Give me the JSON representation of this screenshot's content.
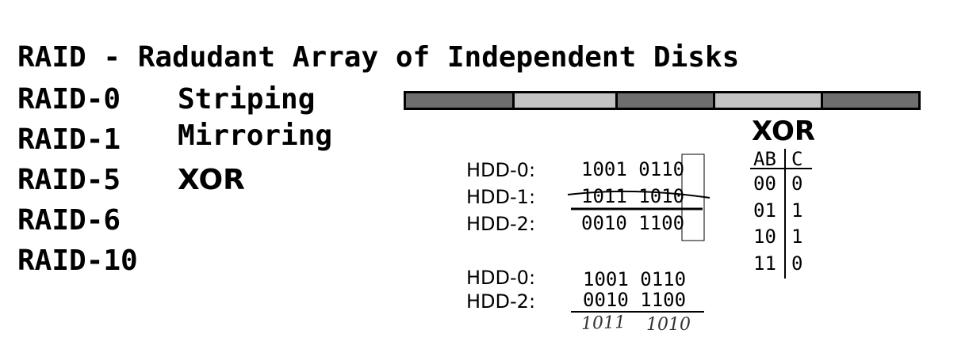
{
  "title": "RAID - Radudant Array of Independent Disks",
  "raid_levels": [
    {
      "label": "RAID-0",
      "desc": "Striping"
    },
    {
      "label": "RAID-1",
      "desc": "Mirroring"
    },
    {
      "label": "RAID-5",
      "desc": "XOR"
    },
    {
      "label": "RAID-6",
      "desc": ""
    },
    {
      "label": "RAID-10",
      "desc": ""
    }
  ],
  "stripe_segments": [
    "dark",
    "light",
    "dark",
    "light",
    "dark"
  ],
  "raid5_example": {
    "rows": [
      {
        "label": "HDD-0:",
        "bits": "1001 0110"
      },
      {
        "label": "HDD-1:",
        "bits": "1011 1010"
      },
      {
        "label": "HDD-2:",
        "bits": "0010 1100"
      }
    ]
  },
  "recovery_example": {
    "rows": [
      {
        "label": "HDD-0:",
        "bits": "1001 0110"
      },
      {
        "label": "HDD-2:",
        "bits": "0010 1100"
      }
    ],
    "result_left": "1011",
    "result_right": "1010"
  },
  "xor_table": {
    "title": "XOR",
    "headers": [
      "AB",
      "C"
    ],
    "rows": [
      [
        "00",
        "0"
      ],
      [
        "01",
        "1"
      ],
      [
        "10",
        "1"
      ],
      [
        "11",
        "0"
      ]
    ]
  }
}
